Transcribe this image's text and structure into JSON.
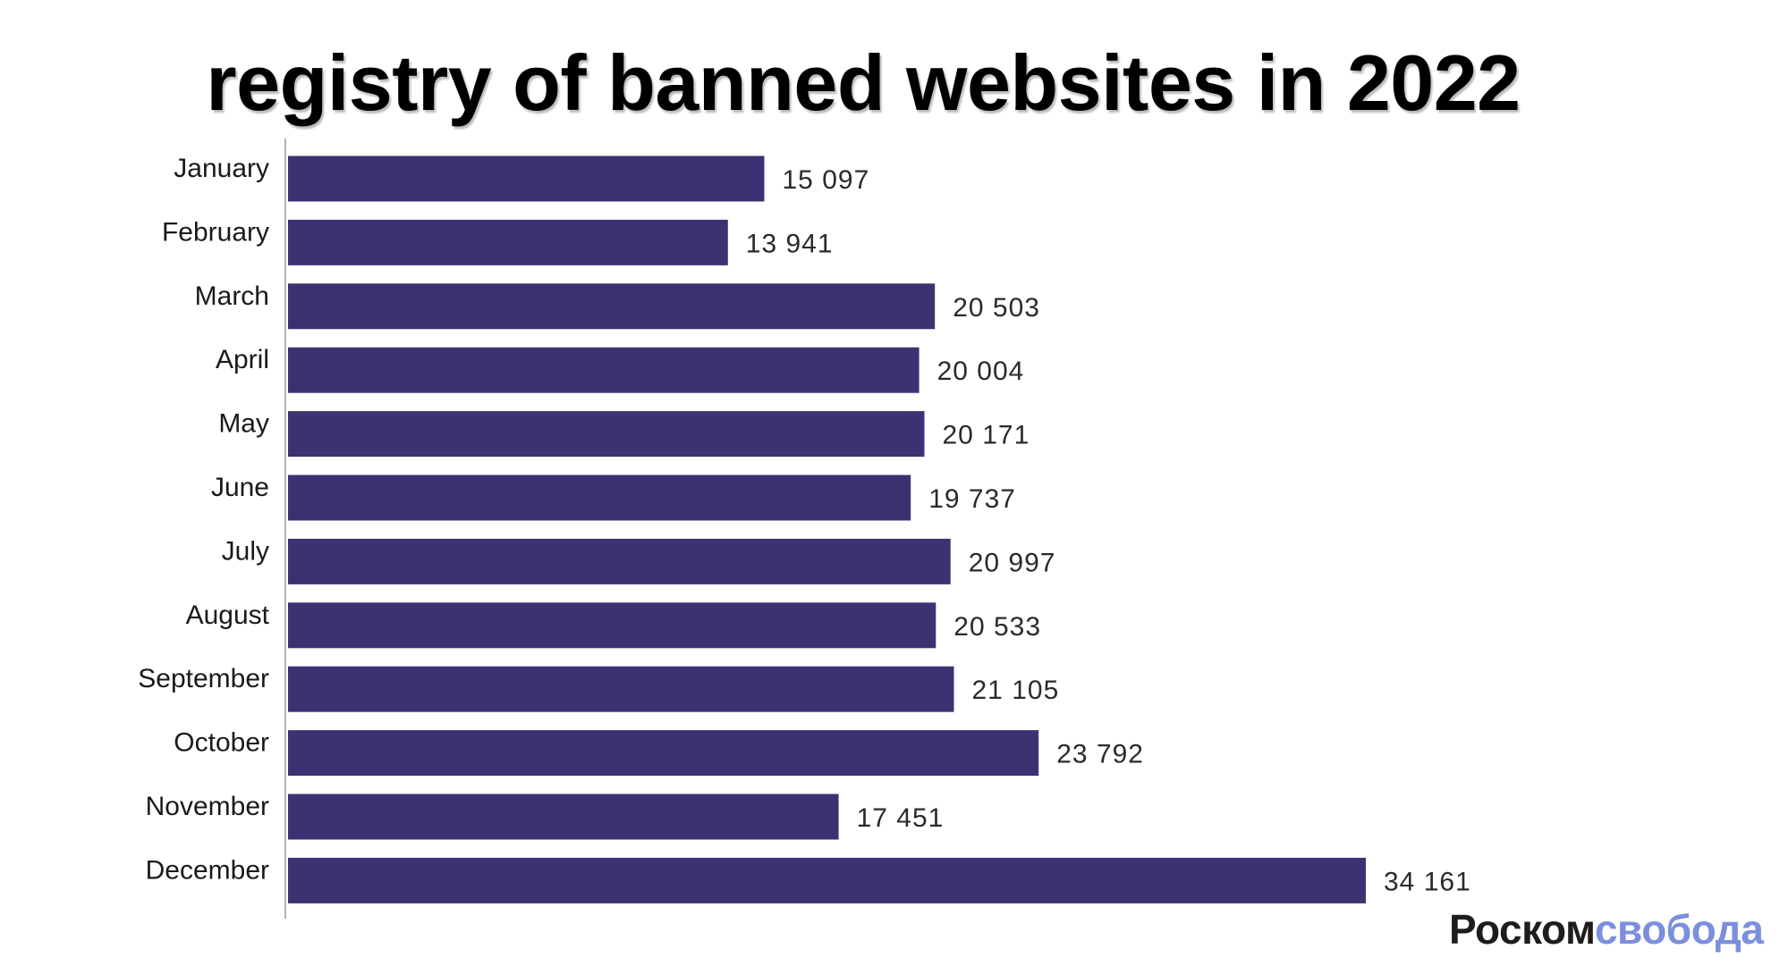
{
  "title": "registry of banned websites in 2022",
  "logo": {
    "part1": "Роском",
    "part2": "свобода"
  },
  "colors": {
    "bar": "#3c3172",
    "axis": "#b5b5b5",
    "logo_dark": "#1d1d1b",
    "logo_light": "#7b8fdc"
  },
  "chart_data": {
    "type": "bar",
    "orientation": "horizontal",
    "title": "registry of banned websites in 2022",
    "xlabel": "",
    "ylabel": "",
    "categories": [
      "January",
      "February",
      "March",
      "April",
      "May",
      "June",
      "July",
      "August",
      "September",
      "October",
      "November",
      "December"
    ],
    "values": [
      15097,
      13941,
      20503,
      20004,
      20171,
      19737,
      20997,
      20533,
      21105,
      23792,
      17451,
      34161
    ],
    "value_labels": [
      "15 097",
      "13 941",
      "20 503",
      "20 004",
      "20 171",
      "19 737",
      "20 997",
      "20 533",
      "21 105",
      "23 792",
      "17 451",
      "34 161"
    ],
    "xlim": [
      0,
      34161
    ],
    "grid": false,
    "legend": "none"
  }
}
